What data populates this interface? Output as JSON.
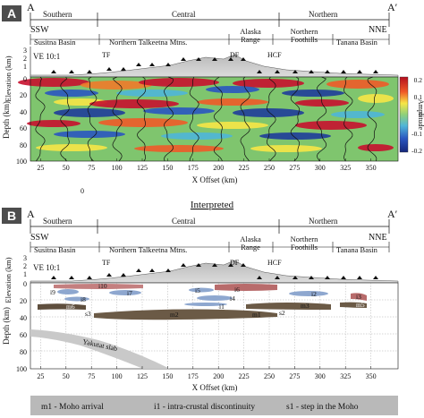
{
  "panelA": {
    "letter": "A",
    "corner_left": "A",
    "corner_right": "A′",
    "regions": [
      "Southern",
      "Central",
      "Northern"
    ],
    "dir_left": "SSW",
    "dir_right": "NNE",
    "basins": [
      "Susitna Basin",
      "Northern Talkeetna Mtns.",
      "Alaska Range",
      "Northern Foothills",
      "Tanana Basin"
    ],
    "ve": "VE 10:1",
    "faults": [
      "TF",
      "DF",
      "HCF"
    ],
    "elevation_label": "Elevation (km)",
    "elev_ticks": [
      "3",
      "2",
      "1",
      "0"
    ],
    "depth_label": "Depth (km)",
    "depth_ticks": [
      "0",
      "20",
      "40",
      "60",
      "80",
      "100"
    ],
    "x_ticks": [
      "25",
      "50",
      "75",
      "100",
      "125",
      "150",
      "175",
      "200",
      "225",
      "250",
      "275",
      "300",
      "325",
      "350"
    ],
    "x_label": "X Offset (km)",
    "extra_zero": "0",
    "colorbar_label": "Amplitude",
    "colorbar_ticks": [
      "0.2",
      "0.1",
      "0",
      "-0.1",
      "-0.2"
    ],
    "colors": {
      "red": "#c8102e",
      "blue": "#1f3c9a",
      "green": "#7dc36a",
      "yellow": "#f7e646"
    }
  },
  "interpreted_title": "Interpreted",
  "panelB": {
    "letter": "B",
    "corner_left": "A",
    "corner_right": "A′",
    "regions": [
      "Southern",
      "Central",
      "Northern"
    ],
    "dir_left": "SSW",
    "dir_right": "NNE",
    "basins": [
      "Susitna Basin",
      "Northern Talkeetna Mtns.",
      "Alaska Range",
      "Northern Foothills",
      "Tanana Basin"
    ],
    "ve": "VE 10:1",
    "faults": [
      "TF",
      "DF",
      "HCF"
    ],
    "elevation_label": "Elevation (km)",
    "elev_ticks": [
      "3",
      "2",
      "1",
      "0"
    ],
    "depth_label": "Depth (km)",
    "depth_ticks": [
      "0",
      "20",
      "40",
      "60",
      "80",
      "100"
    ],
    "x_ticks": [
      "25",
      "50",
      "75",
      "100",
      "125",
      "150",
      "175",
      "200",
      "225",
      "250",
      "275",
      "300",
      "325",
      "350"
    ],
    "x_label": "X Offset (km)",
    "features": {
      "i10": "i10",
      "i9": "i9",
      "i8": "i8",
      "i7": "i7",
      "i6": "i6",
      "i5": "i5",
      "i4": "i4",
      "i3": "i3",
      "i2": "i2",
      "i1": "i1",
      "m6": "m6",
      "m5": "m5",
      "m3": "m3",
      "m2": "m2",
      "m1": "m1",
      "s3": "s3",
      "s2": "s2",
      "slab": "Yakutat slab"
    }
  },
  "legend": {
    "m1": "m1 - Moho arrival",
    "i1": "i1 - intra-crustal discontinuity",
    "s1": "s1 - step in the Moho"
  }
}
